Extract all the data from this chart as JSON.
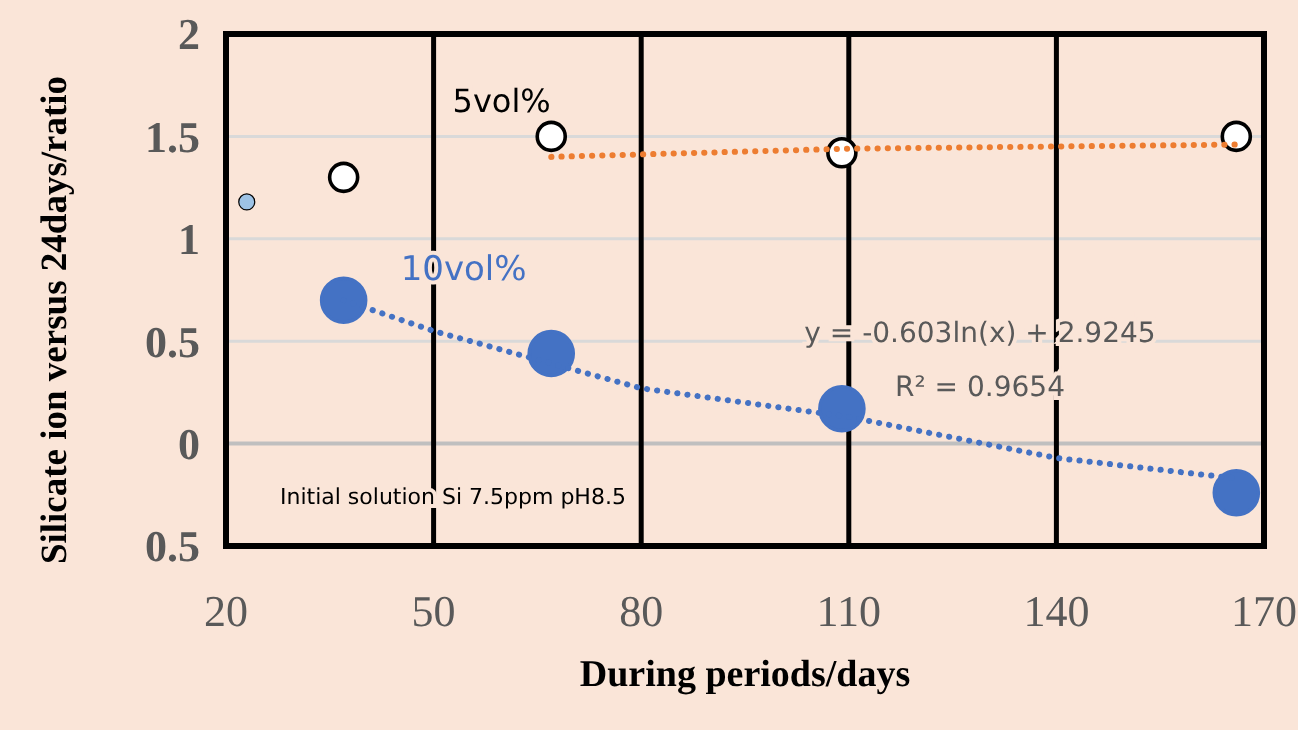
{
  "chart_data": {
    "type": "scatter",
    "xlabel": "During periods/days",
    "ylabel": "Silicate ion versus 24days/ratio",
    "xlim": [
      20,
      170
    ],
    "xticks": [
      20,
      50,
      80,
      110,
      140,
      170
    ],
    "ylim": [
      -0.5,
      2
    ],
    "yticks": [
      {
        "value": -0.5,
        "label": "0.5"
      },
      0,
      0.5,
      1,
      1.5,
      2
    ],
    "grid": true,
    "marker": "circle",
    "annotations": [
      "y = -0.603ln(x) + 2.9245",
      "R² = 0.9654",
      "Initial solution Si 7.5ppm  pH8.5"
    ],
    "series": [
      {
        "color": "#9dc3e6",
        "x": [
          23
        ],
        "values": [
          1.18
        ]
      },
      {
        "name": "5vol%",
        "color": "#ffffff",
        "x": [
          37,
          67,
          109,
          166
        ],
        "values": [
          1.3,
          1.5,
          1.42,
          1.5
        ]
      },
      {
        "name": "10vol%",
        "color": "#4472c4",
        "x": [
          37,
          67,
          109,
          166
        ],
        "values": [
          0.7,
          0.44,
          0.17,
          -0.24
        ]
      },
      {
        "type": "line",
        "color": "#ed7d31",
        "marker": "none",
        "line_style": "dotted",
        "x": [
          67,
          110,
          166
        ],
        "values": [
          1.4,
          1.44,
          1.46
        ]
      },
      {
        "type": "line",
        "color": "#4472c4",
        "marker": "none",
        "line_style": "dotted",
        "x": [
          37,
          50,
          80,
          110,
          140,
          166
        ],
        "values": [
          0.7,
          0.55,
          0.27,
          0.13,
          -0.07,
          -0.17
        ]
      }
    ]
  }
}
